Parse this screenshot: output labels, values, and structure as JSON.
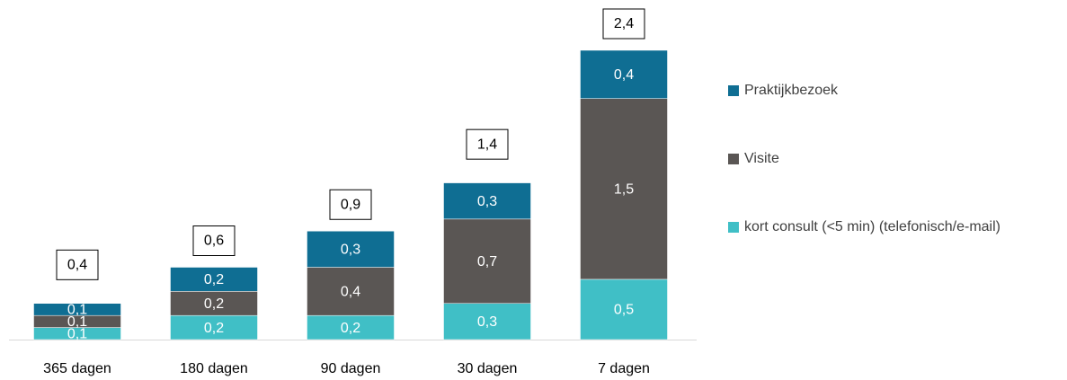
{
  "chart_data": {
    "type": "stacked_bar",
    "categories": [
      "365 dagen",
      "180 dagen",
      "90 dagen",
      "30 dagen",
      "7 dagen"
    ],
    "series": [
      {
        "name": "kort consult (<5 min) (telefonisch/e-mail)",
        "color": "#40bfc6",
        "values": [
          0.1,
          0.2,
          0.2,
          0.3,
          0.5
        ],
        "value_labels": [
          "0,1",
          "0,2",
          "0,2",
          "0,3",
          "0,5"
        ]
      },
      {
        "name": "Visite",
        "color": "#5a5654",
        "values": [
          0.1,
          0.2,
          0.4,
          0.7,
          1.5
        ],
        "value_labels": [
          "0,1",
          "0,2",
          "0,4",
          "0,7",
          "1,5"
        ]
      },
      {
        "name": "Praktijkbezoek",
        "color": "#0f6e93",
        "values": [
          0.1,
          0.2,
          0.3,
          0.3,
          0.4
        ],
        "value_labels": [
          "0,1",
          "0,2",
          "0,3",
          "0,3",
          "0,4"
        ]
      }
    ],
    "totals": [
      0.4,
      0.6,
      0.9,
      1.4,
      2.4
    ],
    "total_labels": [
      "0,4",
      "0,6",
      "0,9",
      "1,4",
      "2,4"
    ],
    "legend": "right"
  }
}
